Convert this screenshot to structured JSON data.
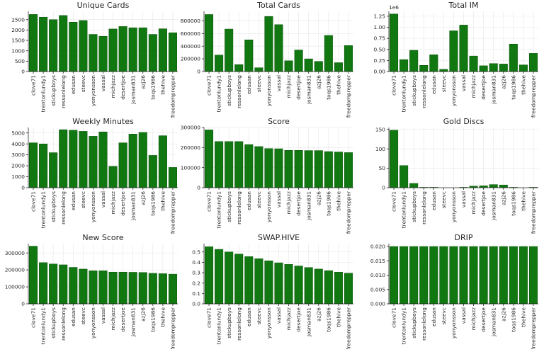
{
  "colors": {
    "bar": "#117711",
    "bar_edge": "#0a520a",
    "axis": "#262626",
    "grid": "#e6e6e6"
  },
  "categories": [
    "clove71",
    "trentonlundy1",
    "stickupboys",
    "ressonlelong",
    "edusan",
    "steevc",
    "yonyonsson",
    "vassal",
    "michjazz",
    "desertjoe",
    "josman831",
    "azj26",
    "toqs1986",
    "thehive",
    "freedomprepper"
  ],
  "chart_data": [
    {
      "type": "bar",
      "title": "Unique Cards",
      "grid": true,
      "ylim": [
        0,
        2900
      ],
      "yticks": [
        0,
        500,
        1000,
        1500,
        2000,
        2500
      ],
      "ytick_labels": [
        "0",
        "500",
        "1000",
        "1500",
        "2000",
        "2500"
      ],
      "values": [
        2750,
        2620,
        2500,
        2700,
        2380,
        2460,
        1790,
        1700,
        2050,
        2170,
        2110,
        2110,
        1790,
        2060,
        1870
      ]
    },
    {
      "type": "bar",
      "title": "Total Cards",
      "grid": true,
      "ylim": [
        0,
        950000
      ],
      "yticks": [
        0,
        200000,
        400000,
        600000,
        800000
      ],
      "ytick_labels": [
        "0",
        "200000",
        "400000",
        "600000",
        "800000"
      ],
      "values": [
        900000,
        260000,
        670000,
        110000,
        500000,
        60000,
        870000,
        740000,
        170000,
        340000,
        200000,
        160000,
        570000,
        140000,
        410000
      ]
    },
    {
      "type": "bar",
      "title": "Total IM",
      "grid": true,
      "ylim": [
        0,
        1360000
      ],
      "offset_text": "1e6",
      "yticks": [
        0,
        250000,
        500000,
        750000,
        1000000,
        1250000
      ],
      "ytick_labels": [
        "0.00",
        "0.25",
        "0.50",
        "0.75",
        "1.00",
        "1.25"
      ],
      "values": [
        1300000,
        270000,
        480000,
        140000,
        380000,
        50000,
        920000,
        1050000,
        350000,
        130000,
        180000,
        170000,
        620000,
        150000,
        410000
      ]
    },
    {
      "type": "bar",
      "title": "Weekly Minutes",
      "grid": true,
      "ylim": [
        0,
        5500
      ],
      "yticks": [
        0,
        1000,
        2000,
        3000,
        4000,
        5000
      ],
      "ytick_labels": [
        "0",
        "1000",
        "2000",
        "3000",
        "4000",
        "5000"
      ],
      "values": [
        4100,
        4000,
        3200,
        5300,
        5250,
        5150,
        4700,
        5100,
        1950,
        4100,
        4900,
        5050,
        2950,
        4750,
        1850
      ]
    },
    {
      "type": "bar",
      "title": "Score",
      "grid": true,
      "ylim": [
        0,
        300000
      ],
      "yticks": [
        0,
        100000,
        200000,
        300000
      ],
      "ytick_labels": [
        "0",
        "100000",
        "200000",
        "300000"
      ],
      "values": [
        288000,
        230000,
        230000,
        230000,
        215000,
        205000,
        195000,
        194000,
        186000,
        186000,
        185000,
        185000,
        180000,
        178000,
        175000
      ]
    },
    {
      "type": "bar",
      "title": "Gold Discs",
      "grid": true,
      "ylim": [
        0,
        155
      ],
      "yticks": [
        0,
        50,
        100,
        150
      ],
      "ytick_labels": [
        "0",
        "50",
        "100",
        "150"
      ],
      "values": [
        148,
        57,
        11,
        1,
        1,
        0,
        0,
        1,
        4,
        5,
        8,
        7,
        1,
        0,
        1
      ]
    },
    {
      "type": "bar",
      "title": "New Score",
      "grid": true,
      "ylim": [
        0,
        355000
      ],
      "yticks": [
        0,
        100000,
        200000,
        300000
      ],
      "ytick_labels": [
        "0",
        "100000",
        "200000",
        "300000"
      ],
      "values": [
        340000,
        243000,
        235000,
        230000,
        215000,
        205000,
        195000,
        195000,
        187000,
        187000,
        186000,
        185000,
        180000,
        178000,
        175000
      ]
    },
    {
      "type": "bar",
      "title": "SWAP.HIVE",
      "grid": true,
      "ylim": [
        0,
        0.58
      ],
      "yticks": [
        0,
        0.1,
        0.2,
        0.3,
        0.4,
        0.5
      ],
      "ytick_labels": [
        "0.0",
        "0.1",
        "0.2",
        "0.3",
        "0.4",
        "0.5"
      ],
      "values": [
        0.55,
        0.525,
        0.5,
        0.48,
        0.455,
        0.435,
        0.415,
        0.395,
        0.38,
        0.365,
        0.35,
        0.335,
        0.32,
        0.305,
        0.295
      ]
    },
    {
      "type": "bar",
      "title": "DRIP",
      "grid": true,
      "ylim": [
        0,
        0.021
      ],
      "yticks": [
        0,
        0.005,
        0.01,
        0.015,
        0.02
      ],
      "ytick_labels": [
        "0.000",
        "0.005",
        "0.010",
        "0.015",
        "0.020"
      ],
      "values": [
        0.02,
        0.02,
        0.02,
        0.02,
        0.02,
        0.02,
        0.02,
        0.02,
        0.02,
        0.02,
        0.02,
        0.02,
        0.02,
        0.02,
        0.02
      ]
    }
  ]
}
